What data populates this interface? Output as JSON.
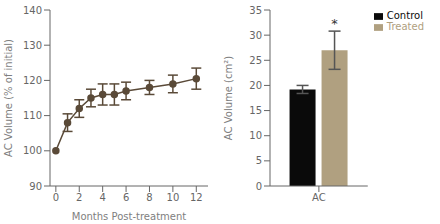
{
  "chart_data": [
    {
      "type": "line",
      "x": [
        0,
        1,
        2,
        3,
        4,
        5,
        6,
        8,
        10,
        12
      ],
      "values": [
        100,
        108,
        112,
        115,
        116,
        116,
        117,
        118,
        119,
        120.5
      ],
      "errors": [
        0,
        2.5,
        2.5,
        2.5,
        3,
        3,
        2.5,
        2,
        2.5,
        3
      ],
      "color": "#5a4a38",
      "marker": "o",
      "xlabel": "Months Post-treatment",
      "ylabel": "AC Volume (% of initial)",
      "xlim": [
        -0.5,
        13
      ],
      "ylim": [
        90,
        140
      ],
      "xticks": [
        0,
        2,
        4,
        6,
        8,
        10,
        12
      ],
      "yticks": [
        90,
        100,
        110,
        120,
        130,
        140
      ],
      "grid": false
    },
    {
      "type": "bar",
      "categories": [
        "AC"
      ],
      "series": [
        {
          "name": "Control",
          "color": "#0a0a0a",
          "values": [
            19.2
          ],
          "errors": [
            0.8
          ]
        },
        {
          "name": "Treated",
          "color": "#b0a080",
          "values": [
            27.0
          ],
          "errors": [
            3.8
          ]
        }
      ],
      "ylabel": "AC Volume (cm²)",
      "ylim": [
        0,
        35
      ],
      "yticks": [
        0,
        5,
        10,
        15,
        20,
        25,
        30,
        35
      ],
      "legend": "upper right",
      "grid": false,
      "annotations": [
        {
          "text": "*",
          "series": "Treated",
          "category": "AC"
        }
      ]
    }
  ]
}
